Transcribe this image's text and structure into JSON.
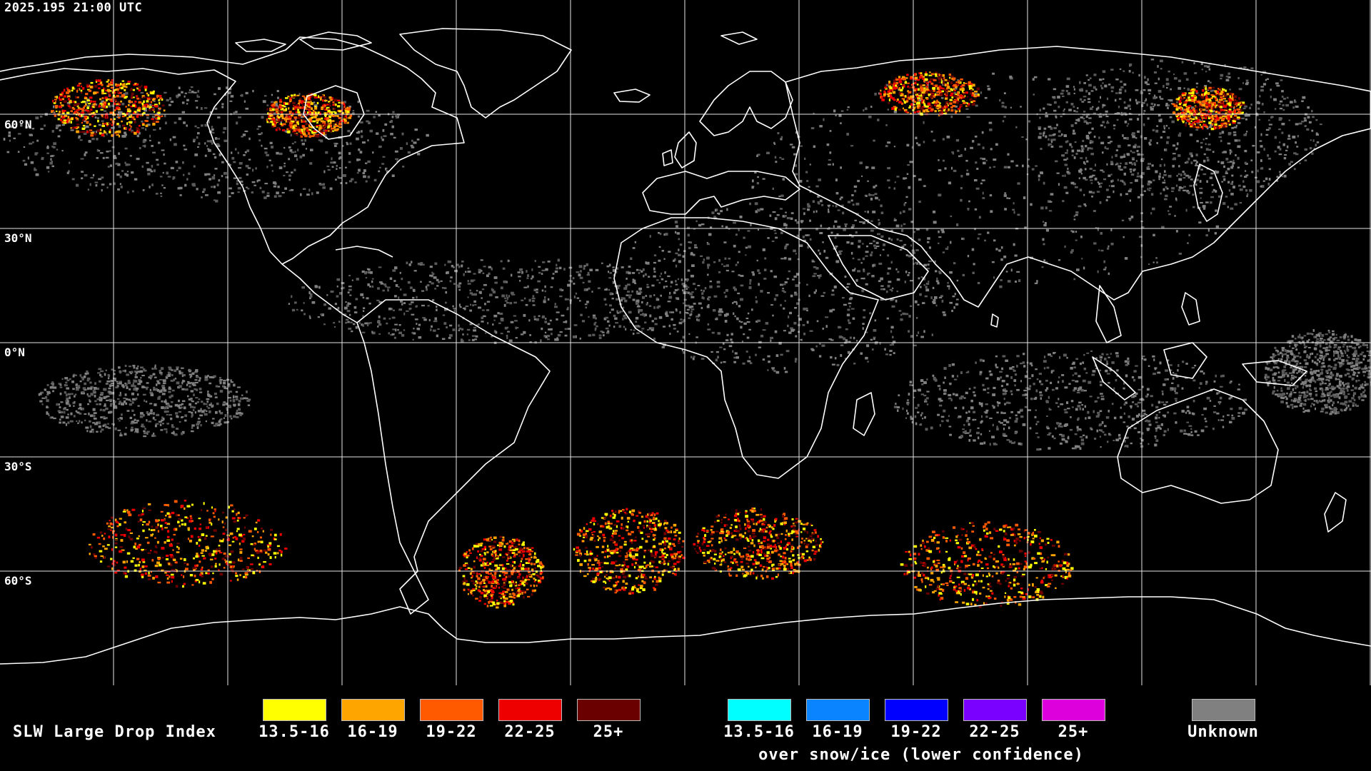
{
  "timestamp": "2025.195 21:00 UTC",
  "lat_labels": [
    "60°N",
    "30°N",
    "0°N",
    "30°S",
    "60°S"
  ],
  "colors": {
    "background": "#000000",
    "coast": "#ffffff",
    "grid": "#ffffff",
    "unknown": "#808080"
  },
  "legend": {
    "title": "SLW Large Drop Index",
    "normal": [
      {
        "label": "13.5-16",
        "color": "#ffff00"
      },
      {
        "label": "16-19",
        "color": "#ffa500"
      },
      {
        "label": "19-22",
        "color": "#ff5a00"
      },
      {
        "label": "22-25",
        "color": "#ee0000"
      },
      {
        "label": "25+",
        "color": "#6a0000"
      }
    ],
    "snow": [
      {
        "label": "13.5-16",
        "color": "#00ffff"
      },
      {
        "label": "16-19",
        "color": "#0a84ff"
      },
      {
        "label": "19-22",
        "color": "#0000ff"
      },
      {
        "label": "22-25",
        "color": "#7a00ff"
      },
      {
        "label": "25+",
        "color": "#dd00dd"
      }
    ],
    "snow_caption": "over snow/ice (lower confidence)",
    "unknown": {
      "label": "Unknown",
      "color": "#808080"
    }
  }
}
